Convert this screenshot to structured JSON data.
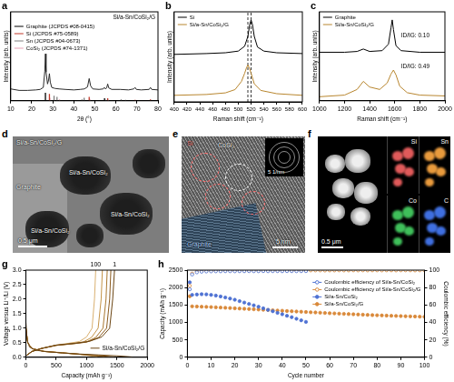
{
  "chart_data": [
    {
      "panel": "a",
      "type": "line",
      "x_label": "2θ (°)",
      "y_label": "Intensity (arb. units)",
      "label": "Si/a-Sn/CoSi₂/G",
      "xlim": [
        10,
        80
      ],
      "xticks": [
        10,
        20,
        30,
        40,
        50,
        60,
        70,
        80
      ],
      "ylim": [
        0,
        180
      ],
      "tick_labels": "x",
      "grid": false,
      "legend": "upper left",
      "series": [
        {
          "name": "Graphite (JCPDS #08-0415)",
          "type": "sticks",
          "color": "#000000",
          "x": [
            26.5,
            54.6
          ],
          "values": [
            16,
            5
          ]
        },
        {
          "name": "Si (JCPDS #75-0589)",
          "type": "sticks",
          "color": "#c0392b",
          "x": [
            28.4,
            47.3,
            56.1,
            69.1,
            76.4
          ],
          "values": [
            14,
            8,
            5,
            2,
            3
          ]
        },
        {
          "name": "Sn (JCPDS #04-0673)",
          "type": "sticks",
          "color": "#7f7f7f",
          "x": [
            30.6,
            32.0,
            43.9,
            44.9,
            55.3,
            62.5,
            64.6
          ],
          "values": [
            10,
            8,
            3,
            6,
            2,
            3,
            2
          ]
        },
        {
          "name": "CoSi₂ (JCPDS #74-1371)",
          "type": "sticks",
          "color": "#e8a0b4",
          "x": [
            28.6,
            33.2,
            47.6,
            56.4
          ],
          "values": [
            6,
            3,
            4,
            2
          ]
        },
        {
          "color": "#2b2b2b",
          "x": [
            10,
            14,
            18,
            22,
            24,
            25.5,
            26.2,
            26.5,
            26.8,
            27.5,
            28,
            28.4,
            28.8,
            29.5,
            31,
            33,
            36,
            40,
            43,
            45,
            46.5,
            47.3,
            48,
            49,
            52,
            54,
            54.5,
            55,
            55.6,
            56.1,
            56.6,
            58,
            62,
            66,
            68.5,
            69.1,
            69.7,
            72,
            75.8,
            76.4,
            77,
            80
          ],
          "values": [
            24,
            21,
            21,
            22,
            23,
            27,
            60,
            95,
            58,
            34,
            42,
            55,
            38,
            27,
            25,
            24,
            23,
            22,
            23,
            24,
            28,
            45,
            30,
            24,
            23,
            24,
            27,
            24,
            26,
            34,
            26,
            23,
            23,
            22,
            24,
            27,
            23,
            22,
            23,
            27,
            23,
            22
          ]
        }
      ]
    },
    {
      "panel": "b",
      "type": "line",
      "x_label": "Raman shift (cm⁻¹)",
      "y_label": "Intensity (arb. units)",
      "xlim": [
        400,
        600
      ],
      "xticks": [
        400,
        420,
        440,
        460,
        480,
        500,
        520,
        540,
        560,
        580,
        600
      ],
      "ylim": [
        0,
        110
      ],
      "tick_labels": "x",
      "grid": false,
      "legend": "upper left",
      "vlines": [
        520,
        515
      ],
      "series": [
        {
          "name": "Si",
          "color": "#000000",
          "x": [
            400,
            450,
            480,
            500,
            510,
            515,
            518,
            520,
            522,
            525,
            530,
            540,
            560,
            600
          ],
          "values": [
            58,
            59,
            60,
            62,
            68,
            80,
            95,
            100,
            95,
            80,
            67,
            62,
            60,
            59
          ]
        },
        {
          "name": "Si/a-Sn/CoSi₂/G",
          "color": "#b8862f",
          "x": [
            400,
            450,
            480,
            495,
            505,
            510,
            513,
            515,
            517,
            520,
            525,
            535,
            560,
            600
          ],
          "values": [
            8,
            9,
            11,
            15,
            25,
            35,
            42,
            45,
            42,
            35,
            22,
            14,
            10,
            8
          ]
        }
      ]
    },
    {
      "panel": "c",
      "type": "line",
      "x_label": "Raman shift (cm⁻¹)",
      "y_label": "Intensity (arb. units)",
      "xlim": [
        1000,
        2000
      ],
      "xticks": [
        1000,
        1200,
        1400,
        1600,
        1800,
        2000
      ],
      "ylim": [
        0,
        110
      ],
      "tick_labels": "x",
      "grid": false,
      "legend": "upper left",
      "annotations": [
        {
          "text": "ID/IG: 0.10",
          "x": 1650,
          "y": 80
        },
        {
          "text": "ID/IG: 0.49",
          "x": 1650,
          "y": 42
        }
      ],
      "series": [
        {
          "name": "Graphite",
          "color": "#000000",
          "x": [
            1000,
            1200,
            1300,
            1350,
            1400,
            1500,
            1550,
            1570,
            1580,
            1590,
            1610,
            1650,
            1800,
            2000
          ],
          "values": [
            60,
            60,
            61,
            64,
            61,
            62,
            70,
            90,
            100,
            88,
            68,
            62,
            60,
            60
          ]
        },
        {
          "name": "Si/a-Sn/CoSi₂/G",
          "color": "#b8862f",
          "x": [
            1000,
            1200,
            1300,
            1350,
            1400,
            1480,
            1540,
            1570,
            1590,
            1610,
            1640,
            1700,
            1800,
            2000
          ],
          "values": [
            5,
            7,
            14,
            24,
            17,
            14,
            22,
            33,
            38,
            32,
            18,
            10,
            7,
            6
          ]
        }
      ]
    },
    {
      "panel": "g",
      "type": "line",
      "x_label": "Capacity (mAh g⁻¹)",
      "y_label": "Voltage versus Li⁺/Li (V)",
      "label": "Si/a-Sn/CoSi₂/G",
      "xlim": [
        0,
        2000
      ],
      "xticks": [
        0,
        500,
        1000,
        1500,
        2000
      ],
      "ylim": [
        0,
        3
      ],
      "yticks": [
        {
          "value": 0,
          "label": "0.0"
        },
        0.5,
        {
          "value": 1,
          "label": "1.0"
        },
        1.5,
        {
          "value": 2,
          "label": "2.0"
        },
        2.5,
        {
          "value": 3,
          "label": "3.0"
        }
      ],
      "grid": false,
      "series": [
        {
          "color": "#6b4513",
          "x": [
            0,
            20,
            60,
            150,
            300,
            600,
            900,
            1200,
            1500,
            1750
          ],
          "values": [
            1.2,
            0.6,
            0.35,
            0.25,
            0.2,
            0.15,
            0.11,
            0.08,
            0.05,
            0.01
          ]
        },
        {
          "name": "1",
          "color": "#6b4513",
          "x": [
            0,
            100,
            250,
            500,
            800,
            1050,
            1250,
            1380,
            1430,
            1460
          ],
          "values": [
            0.05,
            0.2,
            0.3,
            0.42,
            0.48,
            0.55,
            0.7,
            1.0,
            2.0,
            3.0
          ]
        },
        {
          "color": "#8a5a1e",
          "x": [
            0,
            30,
            100,
            300,
            600,
            900,
            1200,
            1450
          ],
          "values": [
            1.0,
            0.5,
            0.3,
            0.2,
            0.15,
            0.1,
            0.06,
            0.01
          ]
        },
        {
          "color": "#8a5a1e",
          "x": [
            0,
            100,
            250,
            500,
            800,
            1000,
            1200,
            1330,
            1380,
            1400
          ],
          "values": [
            0.05,
            0.2,
            0.3,
            0.41,
            0.47,
            0.52,
            0.68,
            1.0,
            2.0,
            3.0
          ]
        },
        {
          "color": "#a8762e",
          "x": [
            0,
            30,
            100,
            300,
            600,
            900,
            1150,
            1380
          ],
          "values": [
            1.0,
            0.5,
            0.3,
            0.2,
            0.15,
            0.1,
            0.06,
            0.01
          ]
        },
        {
          "color": "#a8762e",
          "x": [
            0,
            100,
            250,
            500,
            800,
            1000,
            1150,
            1270,
            1320,
            1340
          ],
          "values": [
            0.05,
            0.2,
            0.3,
            0.41,
            0.47,
            0.53,
            0.68,
            1.0,
            2.0,
            3.0
          ]
        },
        {
          "color": "#c49448",
          "x": [
            0,
            30,
            100,
            300,
            600,
            900,
            1100,
            1300
          ],
          "values": [
            1.0,
            0.5,
            0.3,
            0.2,
            0.15,
            0.1,
            0.06,
            0.01
          ]
        },
        {
          "color": "#c49448",
          "x": [
            0,
            100,
            250,
            500,
            750,
            950,
            1080,
            1190,
            1240,
            1260
          ],
          "values": [
            0.05,
            0.2,
            0.3,
            0.41,
            0.47,
            0.53,
            0.68,
            1.0,
            2.0,
            3.0
          ]
        },
        {
          "color": "#d9b070",
          "x": [
            0,
            30,
            100,
            300,
            600,
            850,
            1000,
            1180
          ],
          "values": [
            1.0,
            0.5,
            0.3,
            0.21,
            0.16,
            0.11,
            0.07,
            0.01
          ]
        },
        {
          "name": "100",
          "color": "#d9b070",
          "x": [
            0,
            100,
            250,
            500,
            700,
            880,
            1000,
            1090,
            1130,
            1150
          ],
          "values": [
            0.05,
            0.2,
            0.3,
            0.42,
            0.48,
            0.54,
            0.7,
            1.0,
            2.0,
            3.0
          ]
        }
      ]
    },
    {
      "panel": "h",
      "type": "scatter",
      "x_label": "Cycle number",
      "y_label": "Capacity (mAh g⁻¹)",
      "y2_label": "Coulombic efficiency (%)",
      "xlim": [
        0,
        100
      ],
      "xticks": [
        0,
        10,
        20,
        30,
        40,
        50,
        60,
        70,
        80,
        90,
        100
      ],
      "ylim": [
        0,
        2500
      ],
      "yticks": [
        0,
        500,
        1000,
        1500,
        2000,
        2500
      ],
      "y2lim": [
        0,
        100
      ],
      "y2ticks": [
        0,
        20,
        40,
        60,
        80,
        100
      ],
      "grid": false,
      "legend": "upper right",
      "series": [
        {
          "name": "Coulombic efficiency of Si/a-Sn/CoSi₂",
          "axis": "y2",
          "marker": "circle_open",
          "color": "#4f72d3",
          "x": [
            1,
            2,
            4,
            6,
            8,
            10,
            12,
            14,
            16,
            18,
            20,
            22,
            24,
            26,
            28,
            30,
            32,
            34,
            36,
            38,
            40,
            42,
            44,
            46,
            48,
            50
          ],
          "values": [
            78,
            95,
            97.5,
            98.2,
            98.5,
            98.6,
            98.7,
            98.7,
            98.8,
            98.8,
            98.7,
            98.8,
            98.8,
            98.9,
            98.8,
            98.8,
            98.9,
            98.8,
            98.9,
            98.9,
            98.8,
            98.9,
            98.9,
            98.8,
            98.9,
            98.9
          ]
        },
        {
          "name": "Coulombic efficiency of Si/a-Sn/CoSi₂/G",
          "axis": "y2",
          "marker": "circle_open",
          "color": "#d9893a",
          "x": [
            1,
            2,
            4,
            6,
            8,
            10,
            12,
            14,
            16,
            18,
            20,
            22,
            24,
            26,
            28,
            30,
            32,
            34,
            36,
            38,
            40,
            42,
            44,
            46,
            48,
            50,
            52,
            54,
            56,
            58,
            60,
            62,
            64,
            66,
            68,
            70,
            72,
            74,
            76,
            78,
            80,
            82,
            84,
            86,
            88,
            90,
            92,
            94,
            96,
            98,
            100
          ],
          "values": [
            82,
            96,
            98.5,
            99.0,
            99.2,
            99.3,
            99.4,
            99.4,
            99.5,
            99.5,
            99.5,
            99.6,
            99.5,
            99.6,
            99.6,
            99.5,
            99.6,
            99.6,
            99.7,
            99.6,
            99.6,
            99.7,
            99.6,
            99.7,
            99.7,
            99.6,
            99.7,
            99.7,
            99.7,
            99.6,
            99.7,
            99.7,
            99.8,
            99.7,
            99.7,
            99.8,
            99.7,
            99.8,
            99.7,
            99.8,
            99.8,
            99.7,
            99.8,
            99.8,
            99.7,
            99.8,
            99.8,
            99.8,
            99.7,
            99.8,
            99.8
          ]
        },
        {
          "name": "Si/a-Sn/CoSi₂",
          "marker": "circle",
          "color": "#4f72d3",
          "x": [
            1,
            2,
            4,
            6,
            8,
            10,
            12,
            14,
            16,
            18,
            20,
            22,
            24,
            26,
            28,
            30,
            32,
            34,
            36,
            38,
            40,
            42,
            44,
            46,
            48,
            50
          ],
          "values": [
            2150,
            1790,
            1800,
            1810,
            1805,
            1790,
            1770,
            1745,
            1715,
            1685,
            1650,
            1610,
            1570,
            1530,
            1490,
            1450,
            1405,
            1360,
            1320,
            1275,
            1235,
            1190,
            1150,
            1105,
            1060,
            1015
          ]
        },
        {
          "name": "Si/a-Sn/CoSi₂/G",
          "marker": "circle",
          "color": "#d9893a",
          "x": [
            1,
            2,
            4,
            6,
            8,
            10,
            12,
            14,
            16,
            18,
            20,
            22,
            24,
            26,
            28,
            30,
            32,
            34,
            36,
            38,
            40,
            42,
            44,
            46,
            48,
            50,
            52,
            54,
            56,
            58,
            60,
            62,
            64,
            66,
            68,
            70,
            72,
            74,
            76,
            78,
            80,
            82,
            84,
            86,
            88,
            90,
            92,
            94,
            96,
            98,
            100
          ],
          "values": [
            1750,
            1460,
            1455,
            1450,
            1446,
            1440,
            1433,
            1426,
            1420,
            1413,
            1405,
            1398,
            1391,
            1384,
            1377,
            1370,
            1362,
            1356,
            1348,
            1341,
            1334,
            1327,
            1320,
            1313,
            1306,
            1298,
            1291,
            1285,
            1278,
            1271,
            1264,
            1258,
            1251,
            1245,
            1239,
            1233,
            1227,
            1221,
            1216,
            1210,
            1205,
            1200,
            1195,
            1190,
            1186,
            1181,
            1177,
            1173,
            1169,
            1165,
            1161
          ]
        }
      ]
    }
  ],
  "images": [
    {
      "panel": "d",
      "title": "Si/a-Sn/CoSi₂/G",
      "labels": [
        "Graphite",
        "Si/a-Sn/CoSi₂",
        "Si/a-Sn/CoSi₂",
        "Si/a-Sn/CoSi₂"
      ],
      "scale_bar": "0.5 μm"
    },
    {
      "panel": "e",
      "labels": [
        "Si",
        "CoSi₂",
        "Graphite"
      ],
      "inset_scale_bar": "5 1/nm",
      "scale_bar": "5 nm"
    },
    {
      "panel": "f",
      "scale_bar": "0.5 μm",
      "maps": [
        {
          "name": "Si",
          "color": "#e05a5a"
        },
        {
          "name": "Sn",
          "color": "#e89a3c"
        },
        {
          "name": "Co",
          "color": "#3fbf5a"
        },
        {
          "name": "C",
          "color": "#3f6fe0"
        }
      ]
    }
  ]
}
